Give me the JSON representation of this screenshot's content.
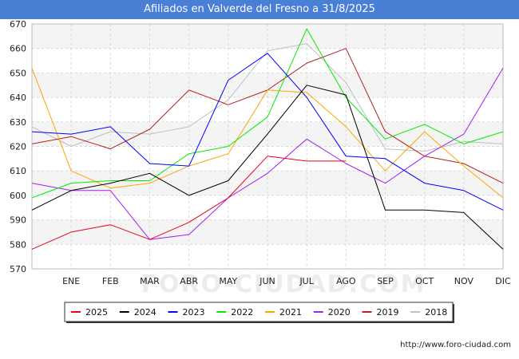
{
  "chart_data": {
    "type": "line",
    "title": "Afiliados en Valverde del Fresno a 31/8/2025",
    "categories": [
      "",
      "ENE",
      "FEB",
      "MAR",
      "ABR",
      "MAY",
      "JUN",
      "JUL",
      "AGO",
      "SEP",
      "OCT",
      "NOV",
      "DIC"
    ],
    "ylim": [
      570,
      670
    ],
    "yticks": [
      570,
      580,
      590,
      600,
      610,
      620,
      630,
      640,
      650,
      660,
      670
    ],
    "grid": true,
    "legend_position": "bottom",
    "watermark": "FORO-CIUDAD.COM",
    "series": [
      {
        "name": "2025",
        "color": "#e8001c",
        "values": [
          578,
          585,
          588,
          582,
          589,
          599,
          616,
          614,
          614,
          null,
          null,
          null,
          null
        ]
      },
      {
        "name": "2024",
        "color": "#000000",
        "values": [
          594,
          602,
          605,
          609,
          600,
          606,
          625,
          645,
          641,
          594,
          594,
          593,
          578
        ]
      },
      {
        "name": "2023",
        "color": "#0000ff",
        "values": [
          626,
          625,
          628,
          613,
          612,
          647,
          658,
          640,
          616,
          615,
          605,
          602,
          594
        ]
      },
      {
        "name": "2022",
        "color": "#00ee00",
        "values": [
          599,
          605,
          606,
          606,
          617,
          620,
          632,
          668,
          640,
          623,
          629,
          621,
          626
        ]
      },
      {
        "name": "2021",
        "color": "#ffa500",
        "values": [
          652,
          610,
          603,
          605,
          612,
          617,
          643,
          642,
          628,
          610,
          626,
          612,
          599
        ]
      },
      {
        "name": "2020",
        "color": "#a020f0",
        "values": [
          605,
          602,
          602,
          582,
          584,
          599,
          609,
          623,
          613,
          605,
          616,
          625,
          652
        ]
      },
      {
        "name": "2019",
        "color": "#b22222",
        "values": [
          621,
          624,
          619,
          627,
          643,
          637,
          643,
          654,
          660,
          626,
          616,
          613,
          605
        ]
      },
      {
        "name": "2018",
        "color": "#c0c0c0",
        "values": [
          628,
          620,
          626,
          625,
          628,
          639,
          659,
          662,
          646,
          619,
          618,
          622,
          621
        ]
      }
    ]
  },
  "footer": {
    "url": "http://www.foro-ciudad.com"
  }
}
